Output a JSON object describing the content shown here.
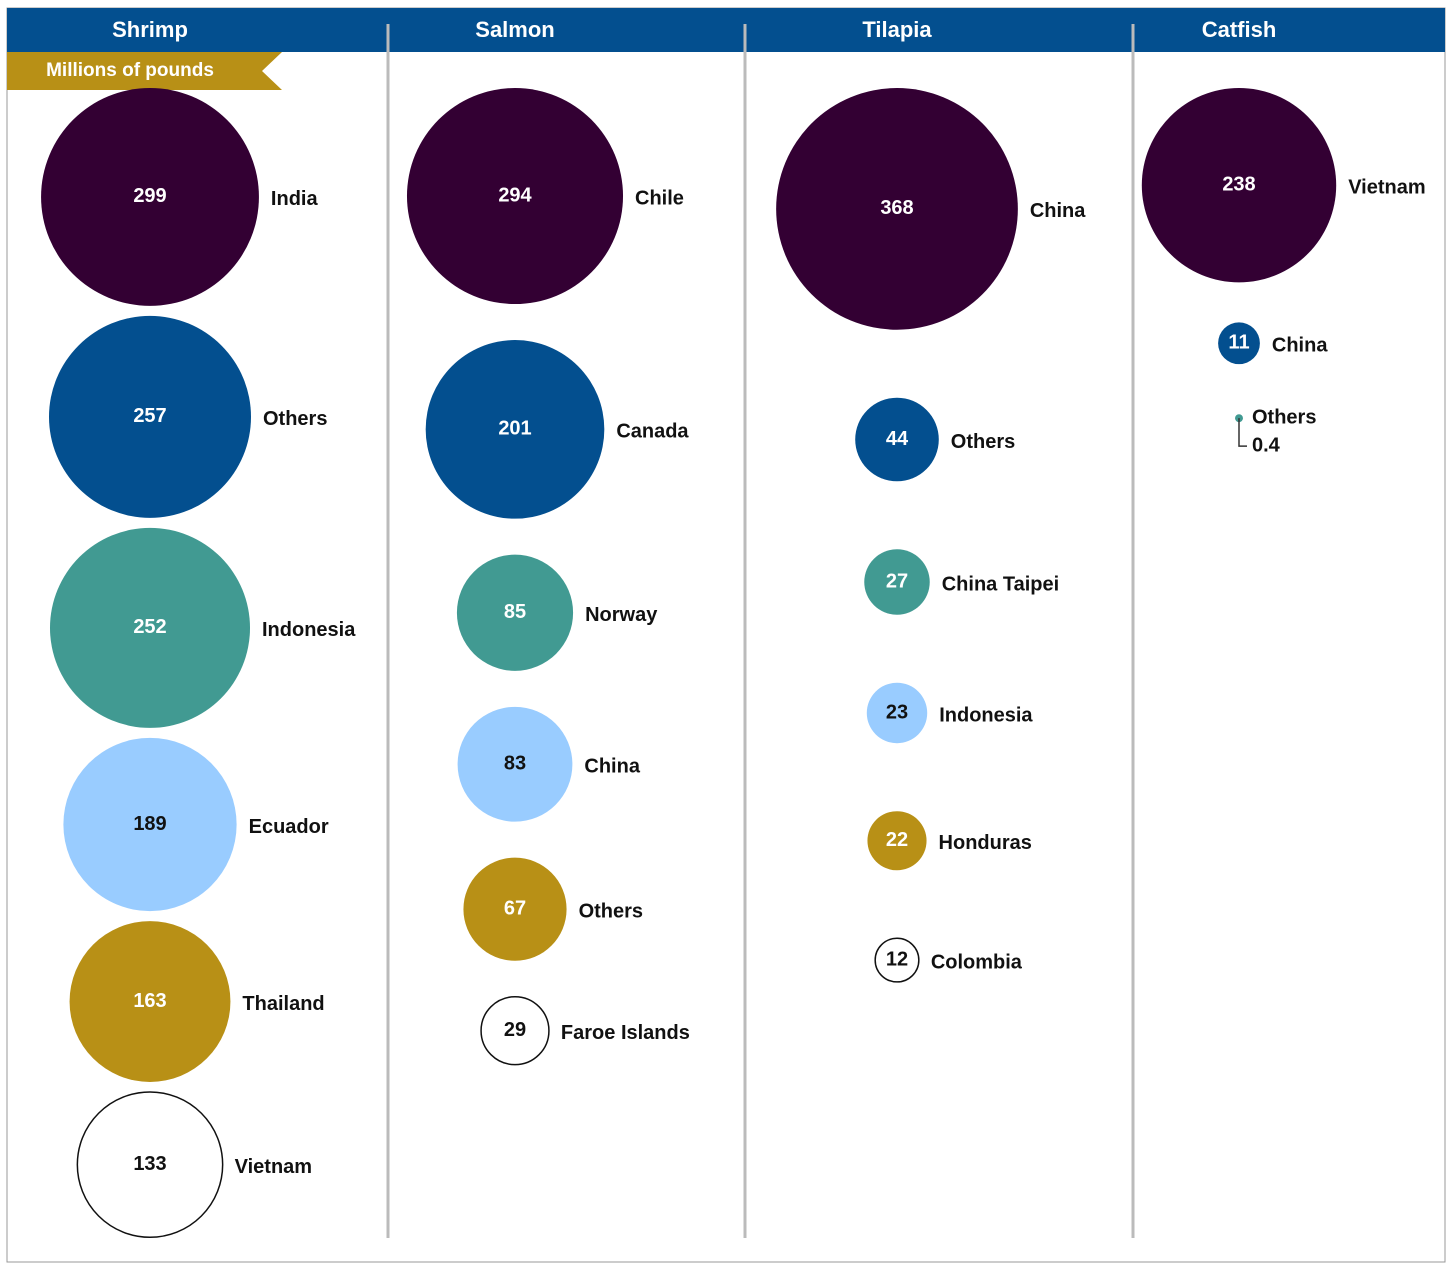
{
  "chart_data": {
    "type": "bubble",
    "subtitle": "Millions of pounds",
    "panels": [
      {
        "title": "Shrimp",
        "series": [
          {
            "name": "India",
            "value": 299,
            "color": "#330033"
          },
          {
            "name": "Others",
            "value": 257,
            "color": "#034f8f"
          },
          {
            "name": "Indonesia",
            "value": 252,
            "color": "#419a92"
          },
          {
            "name": "Ecuador",
            "value": 189,
            "color": "#99ccff"
          },
          {
            "name": "Thailand",
            "value": 163,
            "color": "#b89016"
          },
          {
            "name": "Vietnam",
            "value": 133,
            "color": "#ffffff"
          }
        ]
      },
      {
        "title": "Salmon",
        "series": [
          {
            "name": "Chile",
            "value": 294,
            "color": "#330033"
          },
          {
            "name": "Canada",
            "value": 201,
            "color": "#034f8f"
          },
          {
            "name": "Norway",
            "value": 85,
            "color": "#419a92"
          },
          {
            "name": "China",
            "value": 83,
            "color": "#99ccff"
          },
          {
            "name": "Others",
            "value": 67,
            "color": "#b89016"
          },
          {
            "name": "Faroe Islands",
            "value": 29,
            "color": "#ffffff"
          }
        ]
      },
      {
        "title": "Tilapia",
        "series": [
          {
            "name": "China",
            "value": 368,
            "color": "#330033"
          },
          {
            "name": "Others",
            "value": 44,
            "color": "#034f8f"
          },
          {
            "name": "China Taipei",
            "value": 27,
            "color": "#419a92"
          },
          {
            "name": "Indonesia",
            "value": 23,
            "color": "#99ccff"
          },
          {
            "name": "Honduras",
            "value": 22,
            "color": "#b89016"
          },
          {
            "name": "Colombia",
            "value": 12,
            "color": "#ffffff"
          }
        ]
      },
      {
        "title": "Catfish",
        "series": [
          {
            "name": "Vietnam",
            "value": 238,
            "color": "#330033"
          },
          {
            "name": "China",
            "value": 11,
            "color": "#034f8f"
          },
          {
            "name": "Others",
            "value": 0.4,
            "color": "#419a92"
          }
        ]
      }
    ]
  }
}
